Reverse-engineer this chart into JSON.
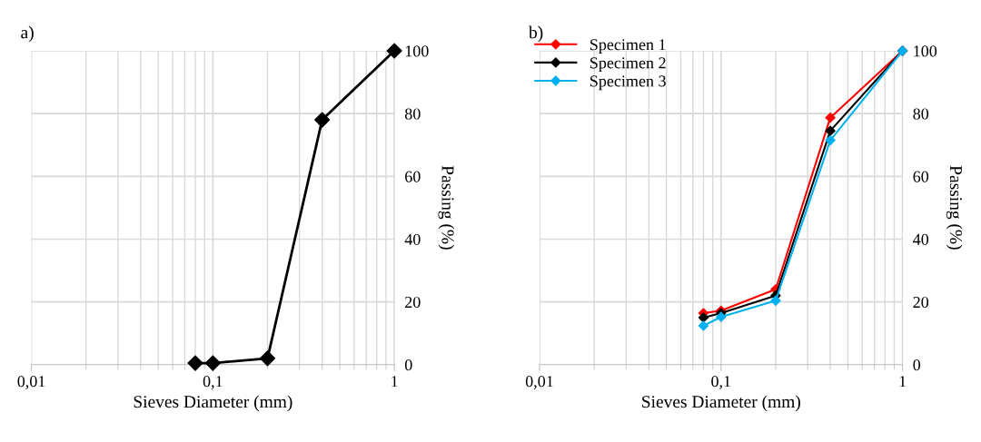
{
  "chart_data": [
    {
      "type": "line",
      "title": "a)",
      "xlabel": "Sieves Diameter (mm)",
      "ylabel": "Passing (%)",
      "x": [
        0.08,
        0.1,
        0.2,
        0.4,
        1
      ],
      "log": "x",
      "xlim": [
        0.01,
        1
      ],
      "xticks": [
        {
          "value": 0.01,
          "label": "0,01"
        },
        {
          "value": 0.1,
          "label": "0,1"
        },
        {
          "value": 1,
          "label": "1"
        }
      ],
      "ylim": [
        0,
        100
      ],
      "yticks": [
        0,
        20,
        40,
        60,
        80,
        100
      ],
      "grid": true,
      "legend": false,
      "marker": "diamond",
      "line_style": "solid",
      "series": [
        {
          "color": "#000000",
          "values": [
            0.5,
            0.5,
            2,
            78,
            100
          ]
        }
      ]
    },
    {
      "type": "line",
      "title": "b)",
      "xlabel": "Sieves Diameter (mm)",
      "ylabel": "Passing (%)",
      "x": [
        0.08,
        0.1,
        0.2,
        0.4,
        1
      ],
      "log": "x",
      "xlim": [
        0.01,
        1
      ],
      "xticks": [
        {
          "value": 0.01,
          "label": "0,01"
        },
        {
          "value": 0.1,
          "label": "0,1"
        },
        {
          "value": 1,
          "label": "1"
        }
      ],
      "ylim": [
        0,
        100
      ],
      "yticks": [
        0,
        20,
        40,
        60,
        80,
        100
      ],
      "grid": true,
      "legend": "top left",
      "marker": "diamond",
      "line_style": "solid",
      "series": [
        {
          "name": "Specimen 1",
          "color": "#ff0000",
          "values": [
            16.4,
            17.2,
            24,
            78.7,
            100
          ]
        },
        {
          "name": "Specimen 2",
          "color": "#000000",
          "values": [
            15,
            16.4,
            22,
            74.5,
            100
          ]
        },
        {
          "name": "Specimen 3",
          "color": "#00b0f0",
          "values": [
            12.4,
            15.2,
            20.4,
            71.5,
            100
          ]
        }
      ]
    }
  ]
}
